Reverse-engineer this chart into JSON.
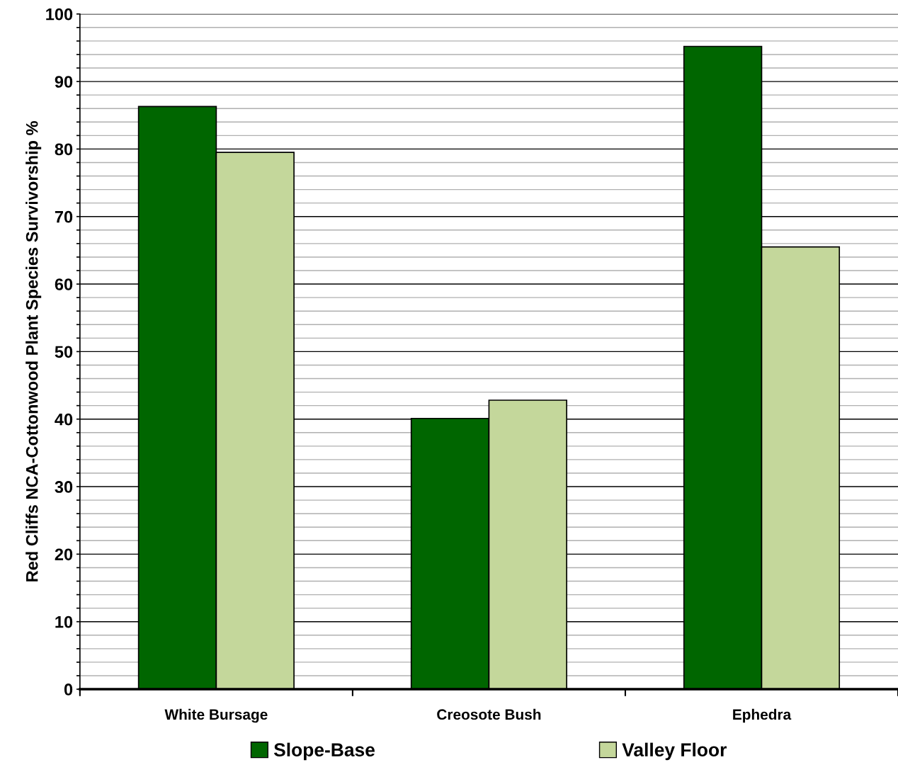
{
  "chart_data": {
    "type": "bar",
    "ylabel": "Red Cliffs NCA-Cottonwood Plant Species Survivorship %",
    "categories": [
      "White Bursage",
      "Creosote Bush",
      "Ephedra"
    ],
    "series": [
      {
        "name": "Slope-Base",
        "color": "#006600",
        "values": [
          86.3,
          40.1,
          95.2
        ]
      },
      {
        "name": "Valley Floor",
        "color": "#c4d79b",
        "values": [
          79.5,
          42.8,
          65.5
        ]
      }
    ],
    "ylim": [
      0,
      100
    ],
    "yticks": [
      0,
      {
        "value": 2,
        "label": null
      },
      {
        "value": 4,
        "label": null
      },
      {
        "value": 6,
        "label": null
      },
      {
        "value": 8,
        "label": null
      },
      10,
      {
        "value": 12,
        "label": null
      },
      {
        "value": 14,
        "label": null
      },
      {
        "value": 16,
        "label": null
      },
      {
        "value": 18,
        "label": null
      },
      20,
      {
        "value": 22,
        "label": null
      },
      {
        "value": 24,
        "label": null
      },
      {
        "value": 26,
        "label": null
      },
      {
        "value": 28,
        "label": null
      },
      30,
      {
        "value": 32,
        "label": null
      },
      {
        "value": 34,
        "label": null
      },
      {
        "value": 36,
        "label": null
      },
      {
        "value": 38,
        "label": null
      },
      40,
      {
        "value": 42,
        "label": null
      },
      {
        "value": 44,
        "label": null
      },
      {
        "value": 46,
        "label": null
      },
      {
        "value": 48,
        "label": null
      },
      50,
      {
        "value": 52,
        "label": null
      },
      {
        "value": 54,
        "label": null
      },
      {
        "value": 56,
        "label": null
      },
      {
        "value": 58,
        "label": null
      },
      60,
      {
        "value": 62,
        "label": null
      },
      {
        "value": 64,
        "label": null
      },
      {
        "value": 66,
        "label": null
      },
      {
        "value": 68,
        "label": null
      },
      70,
      {
        "value": 72,
        "label": null
      },
      {
        "value": 74,
        "label": null
      },
      {
        "value": 76,
        "label": null
      },
      {
        "value": 78,
        "label": null
      },
      80,
      {
        "value": 82,
        "label": null
      },
      {
        "value": 84,
        "label": null
      },
      {
        "value": 86,
        "label": null
      },
      {
        "value": 88,
        "label": null
      },
      90,
      {
        "value": 92,
        "label": null
      },
      {
        "value": 94,
        "label": null
      },
      {
        "value": 96,
        "label": null
      },
      {
        "value": 98,
        "label": null
      },
      100
    ],
    "grid": "y",
    "legend": "bottom"
  }
}
